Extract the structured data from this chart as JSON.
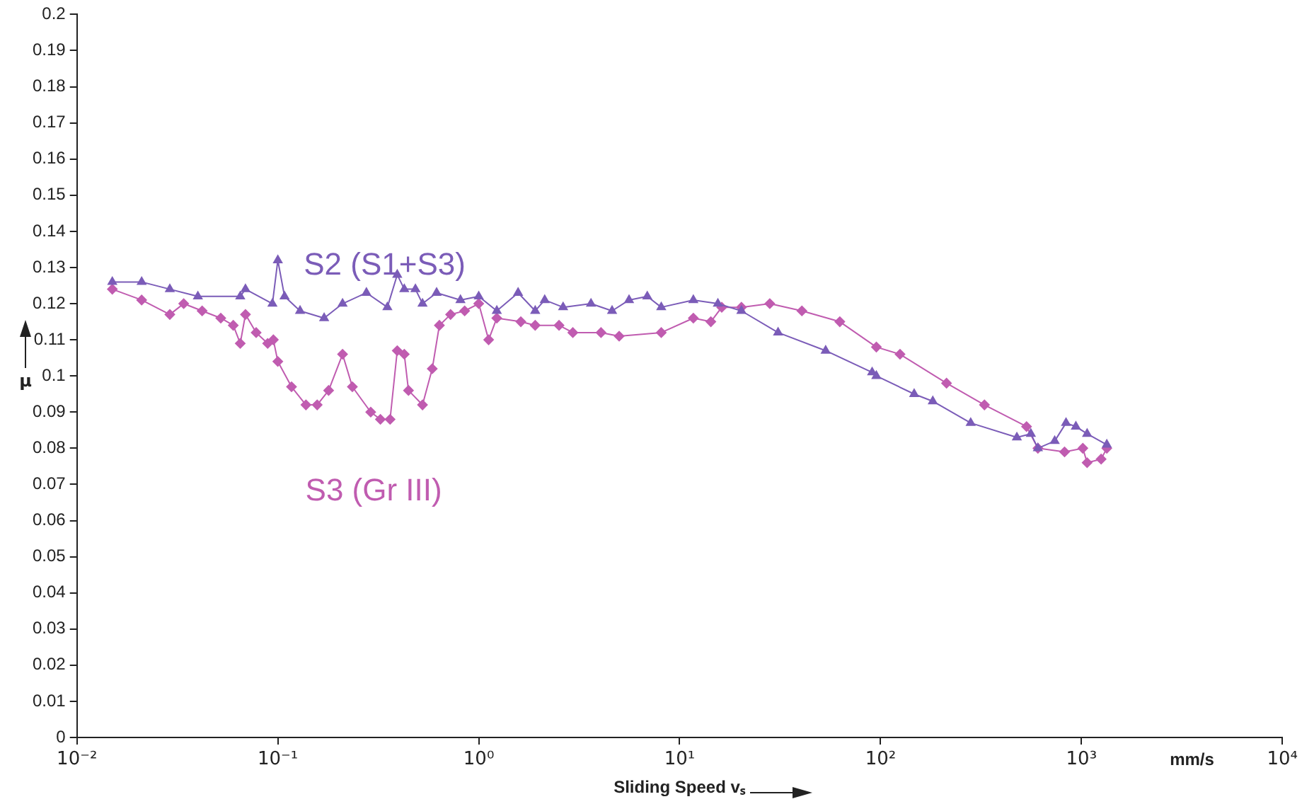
{
  "chart_data": {
    "type": "line",
    "xlabel": "Sliding Speed vₛ",
    "ylabel": "μ",
    "log": "x",
    "grid": false,
    "legend": false,
    "line_style": "solid",
    "xlim": [
      0.01,
      10000
    ],
    "xticks": [
      {
        "value": 0.01,
        "label": "10⁻²"
      },
      {
        "value": 0.1,
        "label": "10⁻¹"
      },
      {
        "value": 1,
        "label": "10⁰"
      },
      {
        "value": 10,
        "label": "10¹"
      },
      {
        "value": 100,
        "label": "10²"
      },
      {
        "value": 1000,
        "label": "10³"
      },
      {
        "value": 10000,
        "label": "10⁴"
      }
    ],
    "ylim": [
      0,
      0.2
    ],
    "yticks": [
      0,
      0.01,
      0.02,
      0.03,
      0.04,
      0.05,
      0.06,
      0.07,
      0.08,
      0.09,
      0.1,
      0.11,
      0.12,
      0.13,
      0.14,
      0.15,
      0.16,
      0.17,
      0.18,
      0.19,
      0.2
    ],
    "annotations": [
      "mm/s"
    ],
    "series": [
      {
        "name": "S2 (S1+S3)",
        "color": "#7b5cb8",
        "marker": "triangle",
        "x": [
          0.015,
          0.021,
          0.029,
          0.04,
          0.065,
          0.069,
          0.094,
          0.1,
          0.108,
          0.129,
          0.17,
          0.21,
          0.276,
          0.351,
          0.393,
          0.426,
          0.484,
          0.525,
          0.617,
          0.811,
          1.0,
          1.23,
          1.57,
          1.91,
          2.13,
          2.63,
          3.62,
          4.61,
          5.6,
          6.9,
          8.1,
          11.7,
          15.5,
          20.3,
          30.9,
          53.3,
          90.8,
          95.3,
          147,
          182,
          281,
          477,
          560,
          607,
          736,
          838,
          938,
          1067,
          1337
        ],
        "values": [
          0.126,
          0.126,
          0.124,
          0.122,
          0.122,
          0.124,
          0.12,
          0.132,
          0.122,
          0.118,
          0.116,
          0.12,
          0.123,
          0.119,
          0.128,
          0.124,
          0.124,
          0.12,
          0.123,
          0.121,
          0.122,
          0.118,
          0.123,
          0.118,
          0.121,
          0.119,
          0.12,
          0.118,
          0.121,
          0.122,
          0.119,
          0.121,
          0.12,
          0.118,
          0.112,
          0.107,
          0.101,
          0.1,
          0.095,
          0.093,
          0.087,
          0.083,
          0.084,
          0.08,
          0.082,
          0.087,
          0.086,
          0.084,
          0.081
        ]
      },
      {
        "name": "S3 (Gr III)",
        "color": "#c05cb0",
        "marker": "diamond",
        "x": [
          0.015,
          0.021,
          0.029,
          0.034,
          0.042,
          0.052,
          0.06,
          0.065,
          0.069,
          0.078,
          0.089,
          0.095,
          0.1,
          0.117,
          0.138,
          0.157,
          0.179,
          0.21,
          0.235,
          0.29,
          0.324,
          0.362,
          0.393,
          0.426,
          0.447,
          0.525,
          0.587,
          0.637,
          0.724,
          0.851,
          1.0,
          1.12,
          1.23,
          1.62,
          1.91,
          2.51,
          2.94,
          4.06,
          5.0,
          8.1,
          11.7,
          14.3,
          16.2,
          20.3,
          28.1,
          40.6,
          62.7,
          95.3,
          125,
          213,
          329,
          533,
          607,
          824,
          1016,
          1067,
          1253,
          1337
        ],
        "values": [
          0.124,
          0.121,
          0.117,
          0.12,
          0.118,
          0.116,
          0.114,
          0.109,
          0.117,
          0.112,
          0.109,
          0.11,
          0.104,
          0.097,
          0.092,
          0.092,
          0.096,
          0.106,
          0.097,
          0.09,
          0.088,
          0.088,
          0.107,
          0.106,
          0.096,
          0.092,
          0.102,
          0.114,
          0.117,
          0.118,
          0.12,
          0.11,
          0.116,
          0.115,
          0.114,
          0.114,
          0.112,
          0.112,
          0.111,
          0.112,
          0.116,
          0.115,
          0.119,
          0.119,
          0.12,
          0.118,
          0.115,
          0.108,
          0.106,
          0.098,
          0.092,
          0.086,
          0.08,
          0.079,
          0.08,
          0.076,
          0.077,
          0.08
        ]
      }
    ]
  }
}
